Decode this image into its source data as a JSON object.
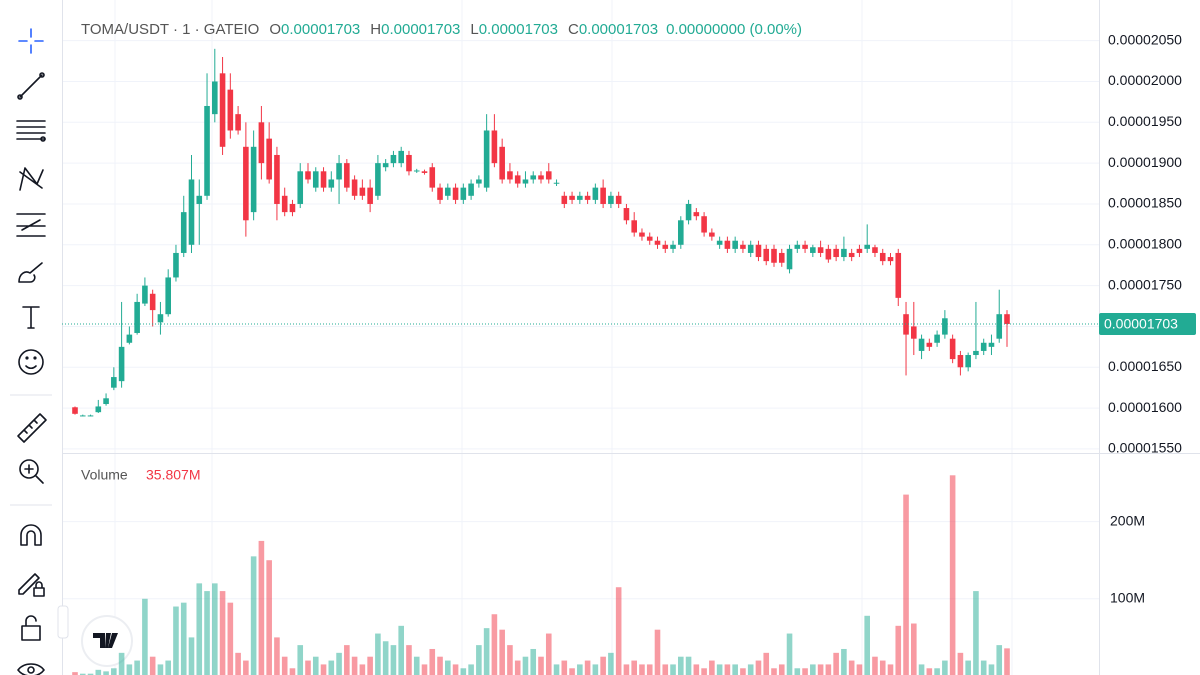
{
  "chart_data": {
    "type": "candlestick",
    "header": {
      "symbol": "TOMA/USDT · 1 · GATEIO",
      "ohlc": [
        {
          "key": "O",
          "value": "0.00001703"
        },
        {
          "key": "H",
          "value": "0.00001703"
        },
        {
          "key": "L",
          "value": "0.00001703"
        },
        {
          "key": "C",
          "value": "0.00001703"
        }
      ],
      "change": "0.00000000 (0.00%)"
    },
    "up_color": "#22ab94",
    "down_color": "#f23645",
    "grid": true,
    "ylim": [
      1.545e-05,
      2.09e-05
    ],
    "yticks": [
      {
        "value": 2.05e-05,
        "label": "0.00002050"
      },
      {
        "value": 2e-05,
        "label": "0.00002000"
      },
      {
        "value": 1.95e-05,
        "label": "0.00001950"
      },
      {
        "value": 1.9e-05,
        "label": "0.00001900"
      },
      {
        "value": 1.85e-05,
        "label": "0.00001850"
      },
      {
        "value": 1.8e-05,
        "label": "0.00001800"
      },
      {
        "value": 1.75e-05,
        "label": "0.00001750"
      },
      {
        "value": 1.7e-05,
        "label": "0.00001700"
      },
      {
        "value": 1.65e-05,
        "label": "0.00001650"
      },
      {
        "value": 1.6e-05,
        "label": "0.00001600"
      },
      {
        "value": 1.55e-05,
        "label": "0.00001550"
      }
    ],
    "last_price": 1.703e-05,
    "open": [
      1.601e-05,
      1.591e-05,
      1.591e-05,
      1.595e-05,
      1.605e-05,
      1.625e-05,
      1.633e-05,
      1.68e-05,
      1.692e-05,
      1.728e-05,
      1.74e-05,
      1.705e-05,
      1.715e-05,
      1.76e-05,
      1.79e-05,
      1.8e-05,
      1.85e-05,
      1.86e-05,
      1.96e-05,
      2.01e-05,
      1.99e-05,
      1.96e-05,
      1.92e-05,
      1.84e-05,
      1.95e-05,
      1.93e-05,
      1.91e-05,
      1.86e-05,
      1.85e-05,
      1.85e-05,
      1.89e-05,
      1.87e-05,
      1.89e-05,
      1.87e-05,
      1.88e-05,
      1.9e-05,
      1.88e-05,
      1.87e-05,
      1.87e-05,
      1.86e-05,
      1.895e-05,
      1.9e-05,
      1.9e-05,
      1.91e-05,
      1.89e-05,
      1.89e-05,
      1.895e-05,
      1.87e-05,
      1.86e-05,
      1.87e-05,
      1.855e-05,
      1.86e-05,
      1.875e-05,
      1.87e-05,
      1.94e-05,
      1.92e-05,
      1.89e-05,
      1.885e-05,
      1.875e-05,
      1.88e-05,
      1.885e-05,
      1.89e-05,
      1.875e-05,
      1.86e-05,
      1.86e-05,
      1.855e-05,
      1.86e-05,
      1.855e-05,
      1.87e-05,
      1.85e-05,
      1.86e-05,
      1.845e-05,
      1.83e-05,
      1.815e-05,
      1.81e-05,
      1.805e-05,
      1.8e-05,
      1.795e-05,
      1.8e-05,
      1.83e-05,
      1.84e-05,
      1.835e-05,
      1.815e-05,
      1.8e-05,
      1.805e-05,
      1.795e-05,
      1.8e-05,
      1.79e-05,
      1.8e-05,
      1.795e-05,
      1.795e-05,
      1.79e-05,
      1.77e-05,
      1.795e-05,
      1.8e-05,
      1.79e-05,
      1.797e-05,
      1.795e-05,
      1.795e-05,
      1.785e-05,
      1.79e-05,
      1.795e-05,
      1.795e-05,
      1.797e-05,
      1.79e-05,
      1.785e-05,
      1.79e-05,
      1.715e-05,
      1.7e-05,
      1.67e-05,
      1.68e-05,
      1.68e-05,
      1.69e-05,
      1.685e-05,
      1.665e-05,
      1.65e-05,
      1.665e-05,
      1.67e-05,
      1.675e-05,
      1.685e-05,
      1.715e-05
    ],
    "high": [
      1.602e-05,
      1.592e-05,
      1.592e-05,
      1.61e-05,
      1.618e-05,
      1.65e-05,
      1.73e-05,
      1.7e-05,
      1.74e-05,
      1.76e-05,
      1.745e-05,
      1.73e-05,
      1.77e-05,
      1.8e-05,
      1.86e-05,
      1.91e-05,
      1.88e-05,
      2.01e-05,
      2.04e-05,
      2.03e-05,
      2.01e-05,
      1.97e-05,
      1.95e-05,
      1.94e-05,
      1.97e-05,
      1.95e-05,
      1.92e-05,
      1.87e-05,
      1.855e-05,
      1.9e-05,
      1.9e-05,
      1.895e-05,
      1.895e-05,
      1.89e-05,
      1.91e-05,
      1.905e-05,
      1.885e-05,
      1.88e-05,
      1.88e-05,
      1.91e-05,
      1.905e-05,
      1.915e-05,
      1.92e-05,
      1.915e-05,
      1.893e-05,
      1.892e-05,
      1.9e-05,
      1.875e-05,
      1.875e-05,
      1.875e-05,
      1.875e-05,
      1.88e-05,
      1.885e-05,
      1.96e-05,
      1.96e-05,
      1.93e-05,
      1.9e-05,
      1.89e-05,
      1.89e-05,
      1.89e-05,
      1.89e-05,
      1.9e-05,
      1.88e-05,
      1.865e-05,
      1.865e-05,
      1.865e-05,
      1.865e-05,
      1.875e-05,
      1.88e-05,
      1.865e-05,
      1.865e-05,
      1.85e-05,
      1.84e-05,
      1.82e-05,
      1.815e-05,
      1.81e-05,
      1.805e-05,
      1.805e-05,
      1.835e-05,
      1.855e-05,
      1.845e-05,
      1.84e-05,
      1.82e-05,
      1.81e-05,
      1.81e-05,
      1.81e-05,
      1.805e-05,
      1.805e-05,
      1.805e-05,
      1.8e-05,
      1.8e-05,
      1.795e-05,
      1.8e-05,
      1.805e-05,
      1.805e-05,
      1.8e-05,
      1.805e-05,
      1.8e-05,
      1.8e-05,
      1.81e-05,
      1.795e-05,
      1.8e-05,
      1.825e-05,
      1.8e-05,
      1.795e-05,
      1.79e-05,
      1.795e-05,
      1.73e-05,
      1.73e-05,
      1.69e-05,
      1.685e-05,
      1.695e-05,
      1.72e-05,
      1.69e-05,
      1.67e-05,
      1.668e-05,
      1.73e-05,
      1.685e-05,
      1.69e-05,
      1.745e-05,
      1.72e-05
    ],
    "low": [
      1.592e-05,
      1.59e-05,
      1.59e-05,
      1.594e-05,
      1.603e-05,
      1.622e-05,
      1.625e-05,
      1.678e-05,
      1.69e-05,
      1.725e-05,
      1.7e-05,
      1.69e-05,
      1.712e-05,
      1.755e-05,
      1.785e-05,
      1.79e-05,
      1.8e-05,
      1.855e-05,
      1.95e-05,
      1.91e-05,
      1.93e-05,
      1.935e-05,
      1.81e-05,
      1.83e-05,
      1.88e-05,
      1.875e-05,
      1.83e-05,
      1.835e-05,
      1.835e-05,
      1.845e-05,
      1.875e-05,
      1.865e-05,
      1.865e-05,
      1.865e-05,
      1.85e-05,
      1.865e-05,
      1.855e-05,
      1.855e-05,
      1.84e-05,
      1.855e-05,
      1.89e-05,
      1.895e-05,
      1.895e-05,
      1.885e-05,
      1.888e-05,
      1.886e-05,
      1.865e-05,
      1.85e-05,
      1.855e-05,
      1.85e-05,
      1.85e-05,
      1.855e-05,
      1.87e-05,
      1.865e-05,
      1.895e-05,
      1.875e-05,
      1.875e-05,
      1.87e-05,
      1.87e-05,
      1.875e-05,
      1.875e-05,
      1.875e-05,
      1.872e-05,
      1.845e-05,
      1.85e-05,
      1.85e-05,
      1.85e-05,
      1.85e-05,
      1.845e-05,
      1.845e-05,
      1.845e-05,
      1.825e-05,
      1.81e-05,
      1.805e-05,
      1.8e-05,
      1.795e-05,
      1.79e-05,
      1.79e-05,
      1.795e-05,
      1.825e-05,
      1.83e-05,
      1.81e-05,
      1.805e-05,
      1.795e-05,
      1.79e-05,
      1.79e-05,
      1.79e-05,
      1.785e-05,
      1.78e-05,
      1.775e-05,
      1.773e-05,
      1.773e-05,
      1.765e-05,
      1.79e-05,
      1.79e-05,
      1.785e-05,
      1.785e-05,
      1.778e-05,
      1.78e-05,
      1.78e-05,
      1.78e-05,
      1.785e-05,
      1.79e-05,
      1.785e-05,
      1.775e-05,
      1.775e-05,
      1.725e-05,
      1.64e-05,
      1.665e-05,
      1.66e-05,
      1.67e-05,
      1.675e-05,
      1.685e-05,
      1.655e-05,
      1.64e-05,
      1.645e-05,
      1.66e-05,
      1.665e-05,
      1.665e-05,
      1.68e-05,
      1.675e-05
    ],
    "close": [
      1.593e-05,
      1.591e-05,
      1.591e-05,
      1.602e-05,
      1.612e-05,
      1.638e-05,
      1.675e-05,
      1.69e-05,
      1.73e-05,
      1.75e-05,
      1.72e-05,
      1.715e-05,
      1.76e-05,
      1.79e-05,
      1.84e-05,
      1.88e-05,
      1.86e-05,
      1.97e-05,
      2e-05,
      1.92e-05,
      1.94e-05,
      1.94e-05,
      1.83e-05,
      1.92e-05,
      1.9e-05,
      1.88e-05,
      1.85e-05,
      1.84e-05,
      1.84e-05,
      1.89e-05,
      1.88e-05,
      1.89e-05,
      1.87e-05,
      1.88e-05,
      1.9e-05,
      1.87e-05,
      1.86e-05,
      1.86e-05,
      1.85e-05,
      1.9e-05,
      1.9e-05,
      1.91e-05,
      1.915e-05,
      1.89e-05,
      1.891e-05,
      1.888e-05,
      1.87e-05,
      1.855e-05,
      1.87e-05,
      1.855e-05,
      1.87e-05,
      1.875e-05,
      1.88e-05,
      1.94e-05,
      1.9e-05,
      1.88e-05,
      1.88e-05,
      1.875e-05,
      1.88e-05,
      1.885e-05,
      1.88e-05,
      1.88e-05,
      1.876e-05,
      1.85e-05,
      1.855e-05,
      1.86e-05,
      1.855e-05,
      1.87e-05,
      1.85e-05,
      1.86e-05,
      1.85e-05,
      1.83e-05,
      1.815e-05,
      1.81e-05,
      1.805e-05,
      1.8e-05,
      1.795e-05,
      1.8e-05,
      1.83e-05,
      1.85e-05,
      1.835e-05,
      1.815e-05,
      1.81e-05,
      1.805e-05,
      1.795e-05,
      1.805e-05,
      1.795e-05,
      1.8e-05,
      1.785e-05,
      1.78e-05,
      1.778e-05,
      1.778e-05,
      1.795e-05,
      1.8e-05,
      1.795e-05,
      1.797e-05,
      1.79e-05,
      1.782e-05,
      1.785e-05,
      1.795e-05,
      1.785e-05,
      1.79e-05,
      1.8e-05,
      1.79e-05,
      1.78e-05,
      1.78e-05,
      1.735e-05,
      1.69e-05,
      1.685e-05,
      1.685e-05,
      1.675e-05,
      1.69e-05,
      1.71e-05,
      1.66e-05,
      1.65e-05,
      1.665e-05,
      1.67e-05,
      1.68e-05,
      1.68e-05,
      1.715e-05,
      1.703e-05
    ],
    "volume": {
      "type": "bar",
      "label": "Volume",
      "value_label": "35.807M",
      "ylim": [
        0,
        285
      ],
      "yticks": [
        {
          "value": 100,
          "label": "100M"
        },
        {
          "value": 200,
          "label": "200M"
        }
      ],
      "values": [
        5,
        3,
        3,
        8,
        6,
        10,
        30,
        15,
        20,
        100,
        25,
        15,
        20,
        90,
        95,
        50,
        120,
        110,
        120,
        110,
        95,
        30,
        20,
        155,
        175,
        150,
        50,
        25,
        10,
        40,
        20,
        25,
        15,
        20,
        30,
        40,
        25,
        15,
        25,
        55,
        45,
        40,
        65,
        40,
        25,
        15,
        35,
        25,
        20,
        15,
        10,
        15,
        40,
        62,
        80,
        60,
        40,
        20,
        25,
        35,
        25,
        55,
        15,
        20,
        10,
        15,
        20,
        15,
        25,
        30,
        115,
        15,
        20,
        15,
        15,
        60,
        15,
        15,
        25,
        25,
        15,
        10,
        20,
        15,
        15,
        15,
        10,
        15,
        20,
        30,
        10,
        15,
        55,
        10,
        10,
        15,
        15,
        15,
        30,
        35,
        20,
        15,
        78,
        25,
        20,
        15,
        65,
        235,
        68,
        15,
        10,
        10,
        20,
        260,
        30,
        20,
        110,
        20,
        15,
        40,
        35.807
      ]
    }
  }
}
